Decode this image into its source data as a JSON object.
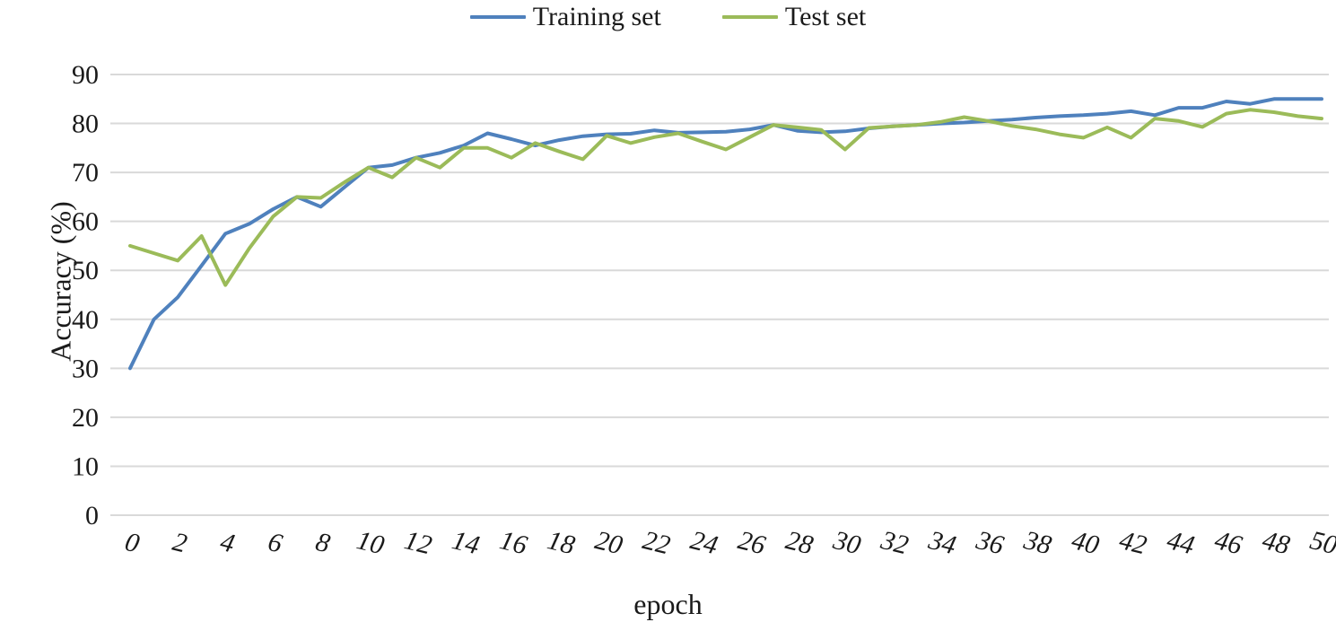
{
  "chart_data": {
    "type": "line",
    "xlabel": "epoch",
    "ylabel": "Accuracy (%)",
    "xlim": [
      0,
      50
    ],
    "ylim": [
      0,
      90
    ],
    "x_ticks": [
      0,
      2,
      4,
      6,
      8,
      10,
      12,
      14,
      16,
      18,
      20,
      22,
      24,
      26,
      28,
      30,
      32,
      34,
      36,
      38,
      40,
      42,
      44,
      46,
      48,
      50
    ],
    "y_ticks": [
      0,
      10,
      20,
      30,
      40,
      50,
      60,
      70,
      80,
      90
    ],
    "grid": "horizontal",
    "gridline_color": "#d9d9d9",
    "legend_position": "top-center",
    "x": [
      0,
      1,
      2,
      3,
      4,
      5,
      6,
      7,
      8,
      9,
      10,
      11,
      12,
      13,
      14,
      15,
      16,
      17,
      18,
      19,
      20,
      21,
      22,
      23,
      24,
      25,
      26,
      27,
      28,
      29,
      30,
      31,
      32,
      33,
      34,
      35,
      36,
      37,
      38,
      39,
      40,
      41,
      42,
      43,
      44,
      45,
      46,
      47,
      48,
      49,
      50
    ],
    "series": [
      {
        "name": "Training set",
        "color": "#4f81bd",
        "values": [
          30,
          40,
          44.5,
          51,
          57.5,
          59.5,
          62.5,
          65,
          63,
          67,
          71,
          71.5,
          73,
          74,
          75.5,
          78,
          76.8,
          75.5,
          76.6,
          77.4,
          77.8,
          77.9,
          78.6,
          78.1,
          78.2,
          78.3,
          78.8,
          79.7,
          78.5,
          78.2,
          78.4,
          79,
          79.4,
          79.7,
          80,
          80.2,
          80.5,
          80.8,
          81.2,
          81.5,
          81.7,
          82,
          82.5,
          81.7,
          83.2,
          83.2,
          84.5,
          84,
          85,
          85,
          85
        ]
      },
      {
        "name": "Test set",
        "color": "#9bbb59",
        "values": [
          55,
          53.5,
          52,
          57,
          47,
          54.5,
          61,
          65,
          64.8,
          68,
          71,
          69,
          73,
          71,
          75,
          75,
          73,
          76,
          74.3,
          72.7,
          77.5,
          76,
          77.2,
          78,
          76.3,
          74.7,
          77.2,
          79.7,
          79.2,
          78.7,
          74.7,
          79.1,
          79.4,
          79.7,
          80.3,
          81.3,
          80.5,
          79.5,
          78.8,
          77.8,
          77.1,
          79.2,
          77.1,
          81,
          80.5,
          79.3,
          82,
          82.8,
          82.3,
          81.5,
          81
        ]
      }
    ],
    "legend": {
      "training_label": "Training set",
      "test_label": "Test set"
    }
  },
  "plot_geometry_note": "y axis 0-90 every 10, x axis 0-50 every 2"
}
